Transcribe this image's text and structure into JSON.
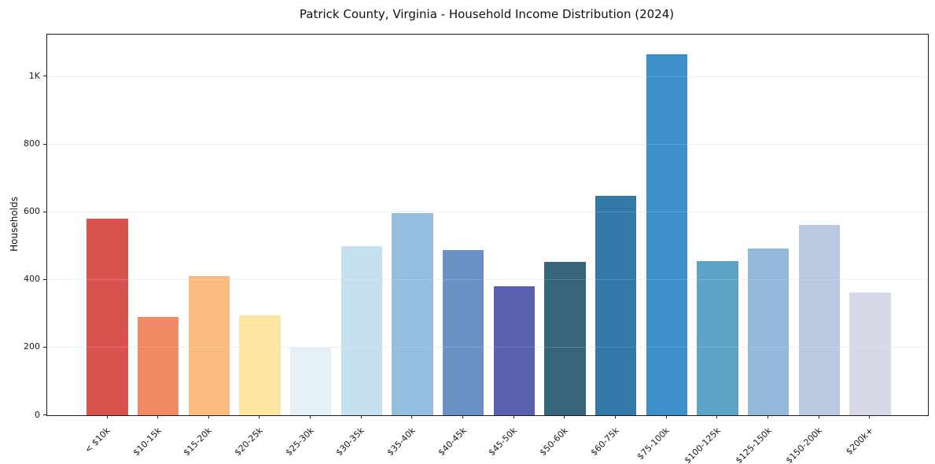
{
  "chart_data": {
    "type": "bar",
    "title": "Patrick County, Virginia - Household Income Distribution (2024)",
    "xlabel": "",
    "ylabel": "Households",
    "categories": [
      "< $10k",
      "$10-15k",
      "$15-20k",
      "$20-25k",
      "$25-30k",
      "$30-35k",
      "$35-40k",
      "$40-45k",
      "$45-50k",
      "$50-60k",
      "$60-75k",
      "$75-100k",
      "$100-125k",
      "$125-150k",
      "$150-200k",
      "$200k+"
    ],
    "values": [
      580,
      291,
      412,
      294,
      202,
      499,
      597,
      488,
      380,
      454,
      648,
      1066,
      456,
      493,
      562,
      363
    ],
    "bar_colors": [
      "#d9534e",
      "#f18a66",
      "#fabc7e",
      "#fde5a4",
      "#e4f0f5",
      "#c6e1ee",
      "#93bedd",
      "#6b91c4",
      "#5a5fae",
      "#37647a",
      "#3379a7",
      "#3c8fc7",
      "#5ba4c6",
      "#92b8da",
      "#bac9e2",
      "#d8d9e8"
    ],
    "ylim": [
      0,
      1124
    ],
    "yticks": [
      {
        "value": 0,
        "label": "0"
      },
      {
        "value": 200,
        "label": "200"
      },
      {
        "value": 400,
        "label": "400"
      },
      {
        "value": 600,
        "label": "600"
      },
      {
        "value": 800,
        "label": "800"
      },
      {
        "value": 1000,
        "label": "1K"
      }
    ],
    "grid": "horizontal",
    "legend": "none"
  },
  "colors": {
    "background": "#ffffff",
    "grid": "#e9e9e9",
    "spine": "#1a1a1a",
    "text": "#111111",
    "tick_text": "#1a1a1a"
  }
}
